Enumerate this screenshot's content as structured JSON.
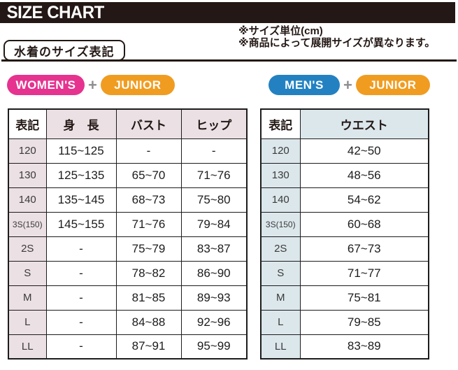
{
  "banner": {
    "title": "SIZE CHART"
  },
  "notes": {
    "line1": "※サイズ単位(cm)",
    "line2": "※商品によって展開サイズが異なります。"
  },
  "section_label": "水着のサイズ表記",
  "groups": {
    "left": {
      "badge1": "WOMEN'S",
      "plus": "+",
      "badge2": "JUNIOR"
    },
    "right": {
      "badge1": "MEN'S",
      "plus": "+",
      "badge2": "JUNIOR"
    }
  },
  "colors": {
    "banner_black": "#231815",
    "womens_pink": "#e5338f",
    "mens_blue": "#2381c2",
    "junior_orange": "#f09c21",
    "women_table_shade": "#ebe0e4",
    "men_table_shade": "#dce7ec"
  },
  "women_table": {
    "headers": [
      "表記",
      "身　長",
      "バスト",
      "ヒップ"
    ],
    "rows": [
      [
        "120",
        "115~125",
        "-",
        "-"
      ],
      [
        "130",
        "125~135",
        "65~70",
        "71~76"
      ],
      [
        "140",
        "135~145",
        "68~73",
        "75~80"
      ],
      [
        "3S(150)",
        "145~155",
        "71~76",
        "79~84"
      ],
      [
        "2S",
        "-",
        "75~79",
        "83~87"
      ],
      [
        "S",
        "-",
        "78~82",
        "86~90"
      ],
      [
        "M",
        "-",
        "81~85",
        "89~93"
      ],
      [
        "L",
        "-",
        "84~88",
        "92~96"
      ],
      [
        "LL",
        "-",
        "87~91",
        "95~99"
      ]
    ]
  },
  "men_table": {
    "headers": [
      "表記",
      "ウエスト"
    ],
    "rows": [
      [
        "120",
        "42~50"
      ],
      [
        "130",
        "48~56"
      ],
      [
        "140",
        "54~62"
      ],
      [
        "3S(150)",
        "60~68"
      ],
      [
        "2S",
        "67~73"
      ],
      [
        "S",
        "71~77"
      ],
      [
        "M",
        "75~81"
      ],
      [
        "L",
        "79~85"
      ],
      [
        "LL",
        "83~89"
      ]
    ]
  }
}
